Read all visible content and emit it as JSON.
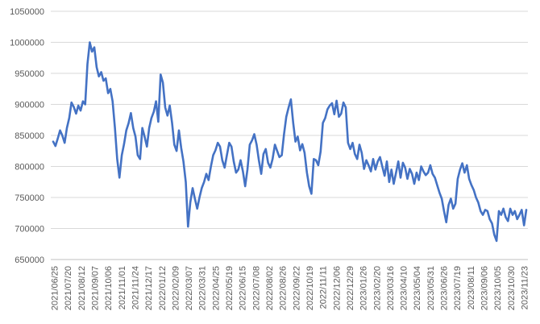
{
  "chart_data": {
    "type": "line",
    "title": "",
    "xlabel": "",
    "ylabel": "",
    "ylim": [
      650000,
      1050000
    ],
    "y_ticks": [
      650000,
      700000,
      750000,
      800000,
      850000,
      900000,
      950000,
      1000000,
      1050000
    ],
    "y_tick_labels": [
      "650000",
      "700000",
      "750000",
      "800000",
      "850000",
      "900000",
      "950000",
      "1000000",
      "1050000"
    ],
    "x_tick_labels": [
      "2021/06/25",
      "2021/07/20",
      "2021/08/12",
      "2021/09/07",
      "2021/10/06",
      "2021/11/01",
      "2021/11/24",
      "2021/12/17",
      "2022/01/12",
      "2022/02/09",
      "2022/03/07",
      "2022/03/31",
      "2022/04/25",
      "2022/05/19",
      "2022/06/15",
      "2022/07/08",
      "2022/08/02",
      "2022/08/26",
      "2022/09/22",
      "2022/10/19",
      "2022/11/11",
      "2022/12/06",
      "2022/12/29",
      "2023/01/26",
      "2023/02/20",
      "2023/03/16",
      "2023/04/10",
      "2023/05/04",
      "2023/05/31",
      "2023/06/26",
      "2023/07/19",
      "2023/08/11",
      "2023/09/06",
      "2023/10/05",
      "2023/10/30",
      "2023/11/23"
    ],
    "grid": true,
    "legend": "none",
    "line_color": "#4472c4",
    "series": [
      {
        "values": [
          840000,
          833000,
          845000,
          858000,
          850000,
          838000,
          862000,
          878000,
          903000,
          896000,
          885000,
          898000,
          890000,
          905000,
          900000,
          965000,
          1000000,
          985000,
          992000,
          960000,
          945000,
          952000,
          938000,
          942000,
          918000,
          925000,
          905000,
          862000,
          812000,
          782000,
          818000,
          836000,
          858000,
          870000,
          886000,
          862000,
          848000,
          818000,
          812000,
          862000,
          848000,
          832000,
          862000,
          878000,
          888000,
          905000,
          872000,
          948000,
          935000,
          895000,
          882000,
          898000,
          870000,
          835000,
          825000,
          858000,
          830000,
          808000,
          775000,
          703000,
          742000,
          765000,
          748000,
          732000,
          750000,
          765000,
          775000,
          788000,
          778000,
          800000,
          818000,
          826000,
          838000,
          832000,
          810000,
          798000,
          818000,
          838000,
          832000,
          808000,
          790000,
          795000,
          810000,
          792000,
          768000,
          795000,
          835000,
          842000,
          852000,
          835000,
          810000,
          788000,
          820000,
          828000,
          806000,
          798000,
          812000,
          835000,
          825000,
          815000,
          818000,
          852000,
          880000,
          895000,
          908000,
          870000,
          840000,
          848000,
          826000,
          836000,
          822000,
          790000,
          768000,
          756000,
          812000,
          810000,
          802000,
          824000,
          870000,
          878000,
          892000,
          898000,
          902000,
          884000,
          906000,
          880000,
          885000,
          903000,
          895000,
          838000,
          828000,
          838000,
          820000,
          812000,
          835000,
          822000,
          796000,
          810000,
          802000,
          792000,
          812000,
          795000,
          808000,
          815000,
          800000,
          785000,
          808000,
          775000,
          795000,
          772000,
          790000,
          808000,
          782000,
          806000,
          798000,
          780000,
          796000,
          788000,
          772000,
          790000,
          778000,
          800000,
          792000,
          786000,
          790000,
          802000,
          788000,
          782000,
          770000,
          758000,
          748000,
          728000,
          710000,
          738000,
          748000,
          732000,
          740000,
          780000,
          795000,
          805000,
          790000,
          802000,
          780000,
          770000,
          762000,
          750000,
          742000,
          728000,
          722000,
          730000,
          728000,
          715000,
          708000,
          690000,
          680000,
          728000,
          722000,
          732000,
          718000,
          712000,
          732000,
          722000,
          728000,
          715000,
          722000,
          730000,
          705000,
          730000
        ]
      }
    ]
  }
}
